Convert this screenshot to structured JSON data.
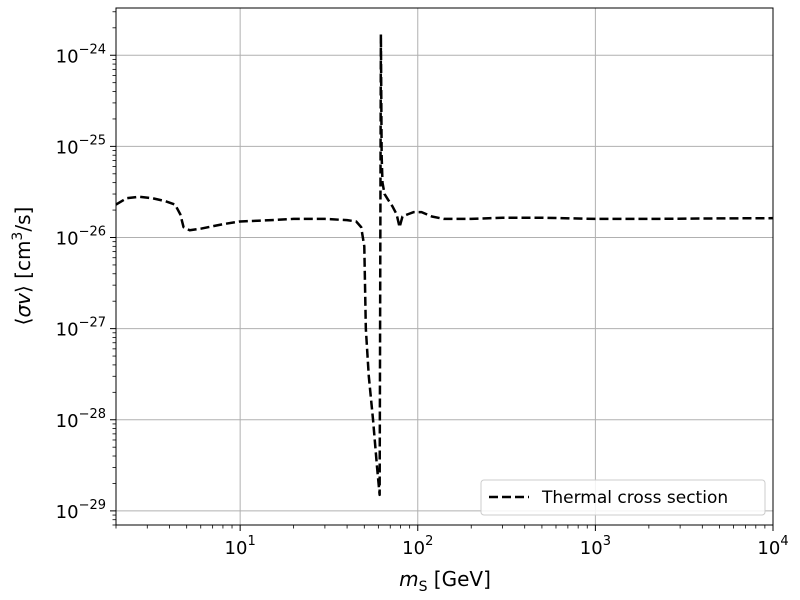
{
  "chart_data": {
    "type": "line",
    "xscale": "log",
    "yscale": "log",
    "xlim": [
      2,
      10000
    ],
    "ylim": [
      7e-30,
      3.3e-24
    ],
    "grid": true,
    "xlabel": "m_S [GeV]",
    "ylabel": "⟨σv⟩ [cm³/s]",
    "x_ticks": [
      {
        "base": "10",
        "exp": "1"
      },
      {
        "base": "10",
        "exp": "2"
      },
      {
        "base": "10",
        "exp": "3"
      },
      {
        "base": "10",
        "exp": "4"
      }
    ],
    "y_ticks": [
      {
        "base": "10",
        "exp": "−24"
      },
      {
        "base": "10",
        "exp": "−25"
      },
      {
        "base": "10",
        "exp": "−26"
      },
      {
        "base": "10",
        "exp": "−27"
      },
      {
        "base": "10",
        "exp": "−28"
      },
      {
        "base": "10",
        "exp": "−29"
      }
    ],
    "legend": {
      "position": "lower-right"
    },
    "series": [
      {
        "name": "Thermal cross section",
        "style": "dashed",
        "color": "#000000",
        "points": [
          [
            2.0,
            2.3e-26
          ],
          [
            2.3,
            2.7e-26
          ],
          [
            2.7,
            2.8e-26
          ],
          [
            3.2,
            2.7e-26
          ],
          [
            3.8,
            2.5e-26
          ],
          [
            4.3,
            2.3e-26
          ],
          [
            4.6,
            1.8e-26
          ],
          [
            4.8,
            1.3e-26
          ],
          [
            5.2,
            1.2e-26
          ],
          [
            6.0,
            1.25e-26
          ],
          [
            8.0,
            1.4e-26
          ],
          [
            10,
            1.5e-26
          ],
          [
            15,
            1.55e-26
          ],
          [
            20,
            1.6e-26
          ],
          [
            30,
            1.6e-26
          ],
          [
            40,
            1.55e-26
          ],
          [
            45,
            1.5e-26
          ],
          [
            48,
            1.3e-26
          ],
          [
            50,
            8e-27
          ],
          [
            51,
            1e-27
          ],
          [
            53,
            3e-28
          ],
          [
            56,
            1e-28
          ],
          [
            59,
            3e-29
          ],
          [
            61,
            1.5e-29
          ],
          [
            62,
            1.7e-24
          ],
          [
            62.6,
            8e-26
          ],
          [
            63.3,
            4e-26
          ],
          [
            65,
            3e-26
          ],
          [
            68,
            2.6e-26
          ],
          [
            72,
            2.2e-26
          ],
          [
            76,
            1.8e-26
          ],
          [
            79,
            1.3e-26
          ],
          [
            82,
            1.7e-26
          ],
          [
            88,
            1.8e-26
          ],
          [
            95,
            1.9e-26
          ],
          [
            105,
            1.9e-26
          ],
          [
            120,
            1.7e-26
          ],
          [
            140,
            1.6e-26
          ],
          [
            200,
            1.6e-26
          ],
          [
            300,
            1.65e-26
          ],
          [
            500,
            1.65e-26
          ],
          [
            1000,
            1.6e-26
          ],
          [
            2000,
            1.6e-26
          ],
          [
            5000,
            1.62e-26
          ],
          [
            10000,
            1.63e-26
          ]
        ]
      }
    ]
  }
}
